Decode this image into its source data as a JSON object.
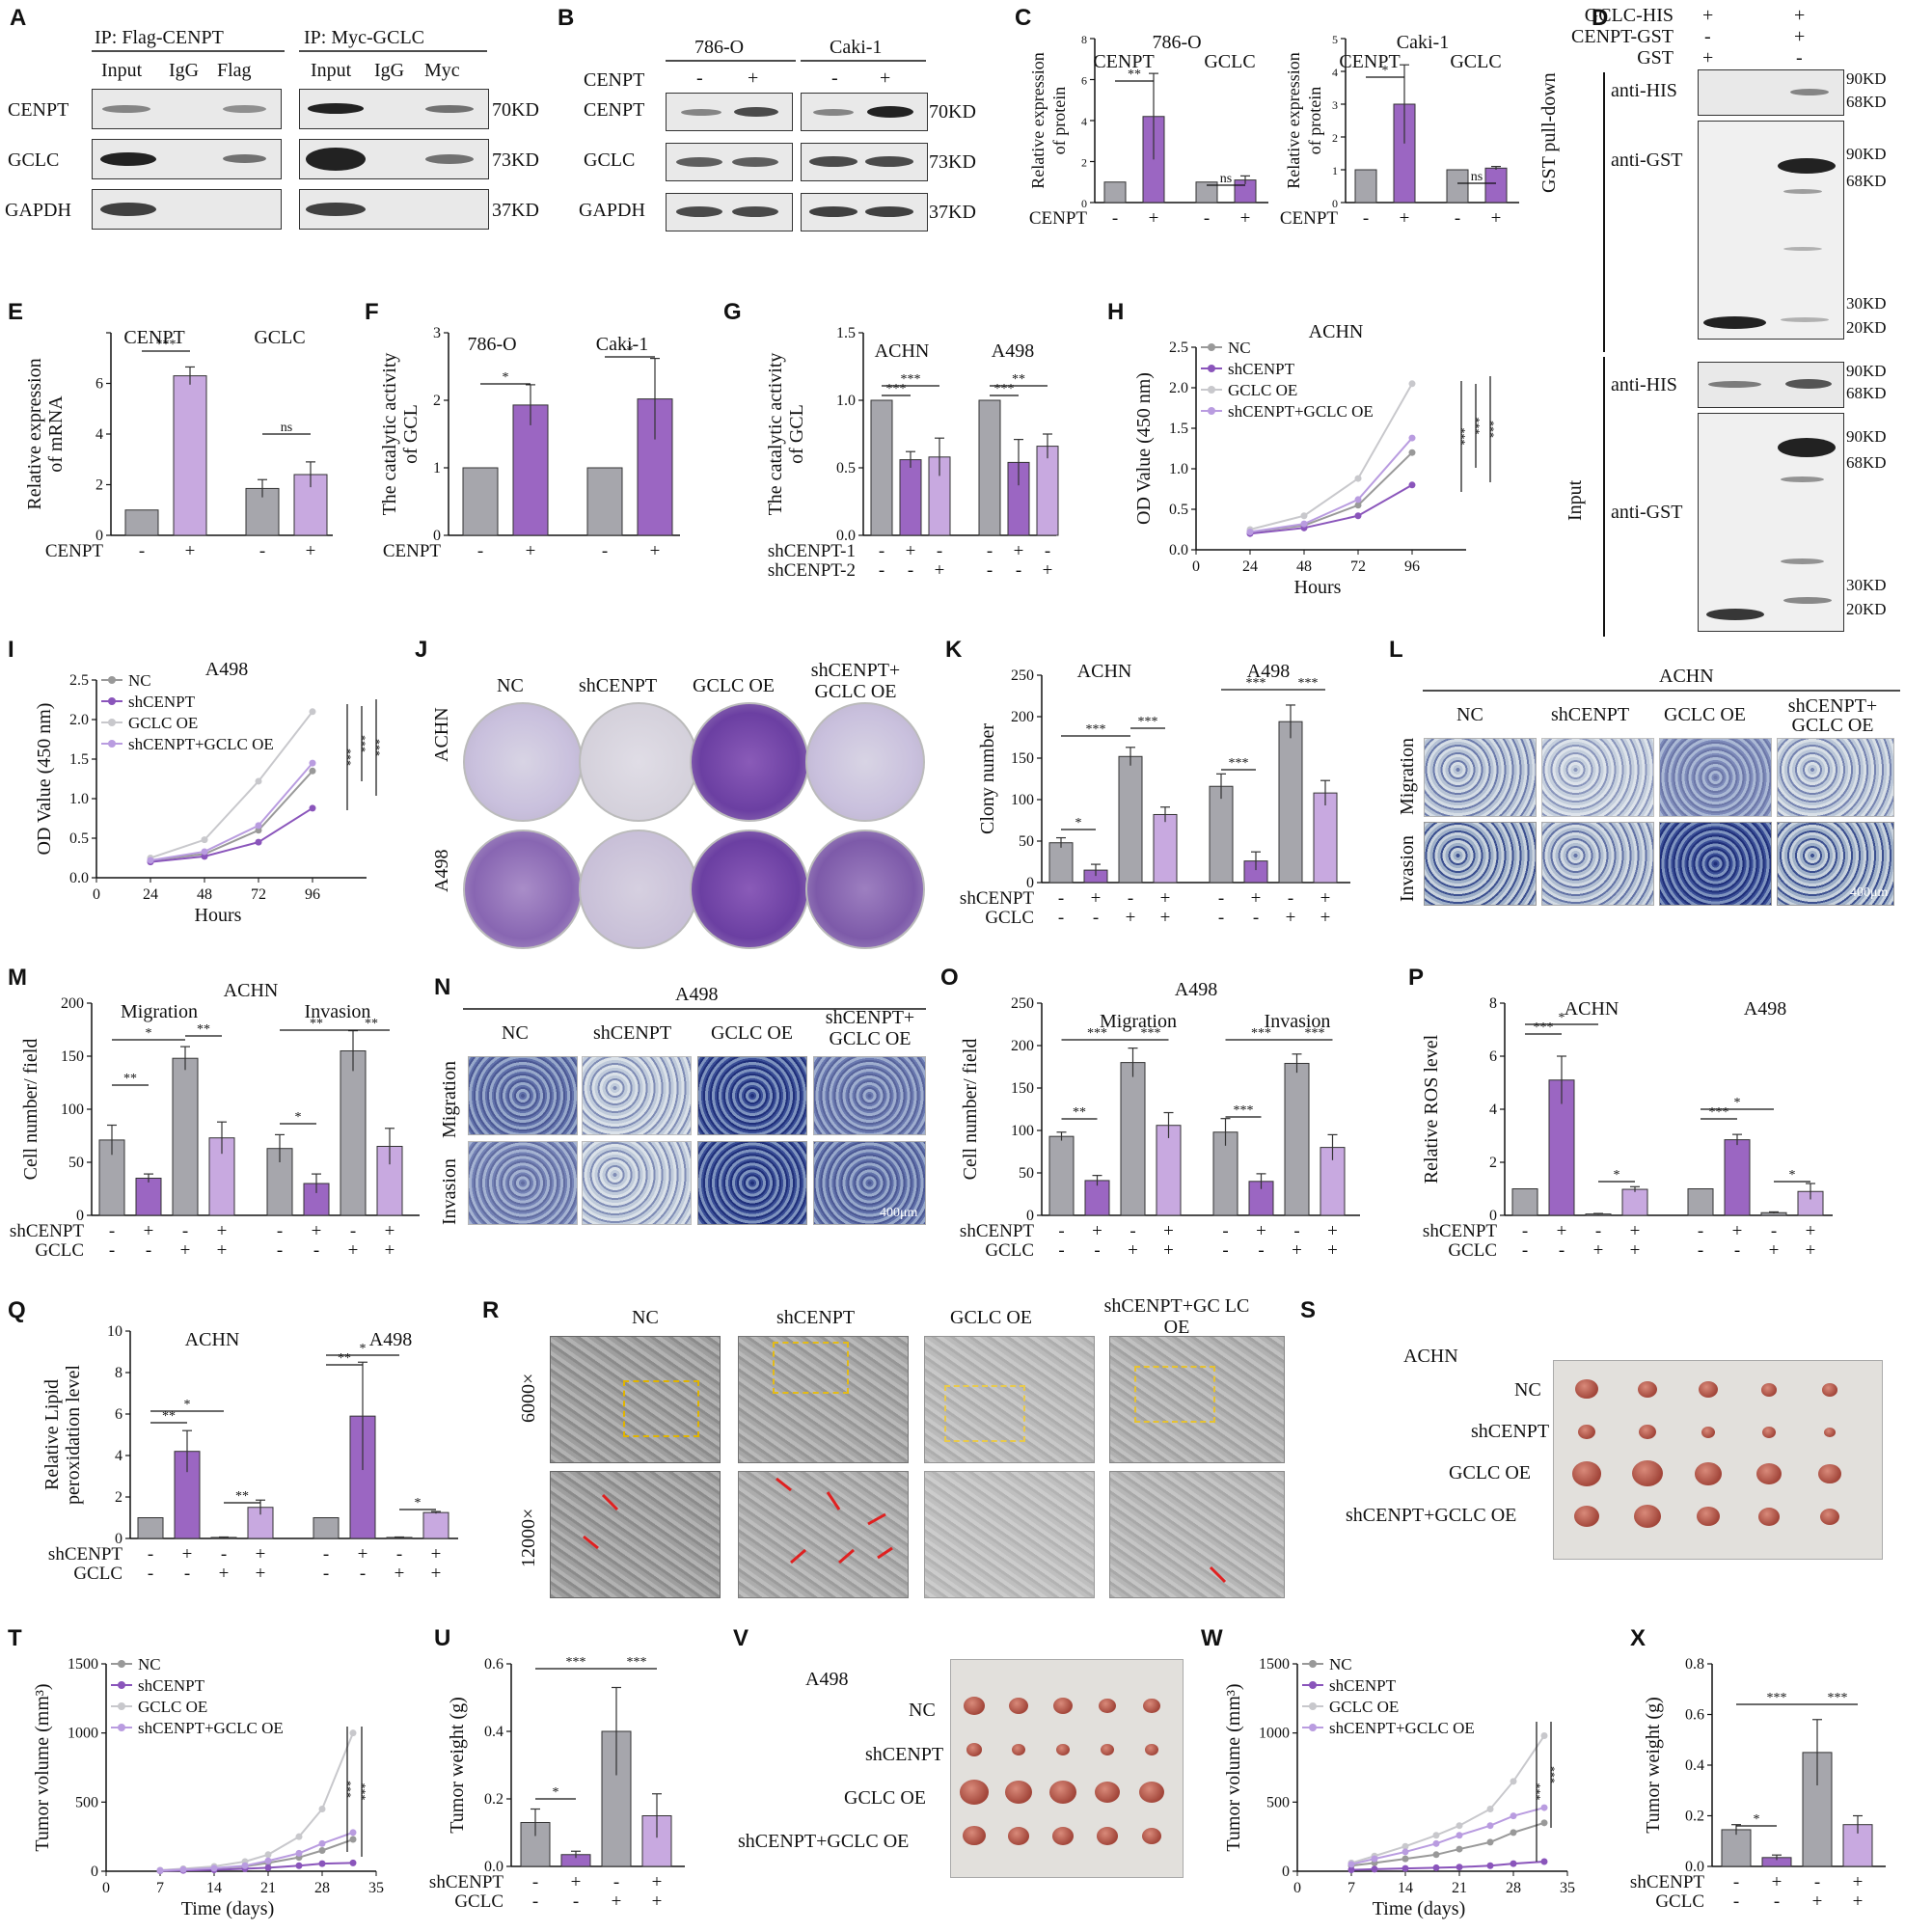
{
  "panels": {
    "A": {
      "label": "A",
      "ip1": "IP: Flag-CENPT",
      "ip2": "IP: Myc-GCLC",
      "cols1": [
        "Input",
        "IgG",
        "Flag"
      ],
      "cols2": [
        "Input",
        "IgG",
        "Myc"
      ],
      "rows": [
        "CENPT",
        "GCLC",
        "GAPDH"
      ],
      "kd": [
        "70KD",
        "73KD",
        "37KD"
      ]
    },
    "B": {
      "label": "B",
      "cell1": "786-O",
      "cell2": "Caki-1",
      "cenpt": "CENPT",
      "signs": [
        "-",
        "+",
        "-",
        "+"
      ],
      "rows": [
        "CENPT",
        "GCLC",
        "GAPDH"
      ],
      "kd": [
        "70KD",
        "73KD",
        "37KD"
      ]
    },
    "C": {
      "label": "C",
      "ylabel": "Relative expression of protein",
      "title1": "786-O",
      "title2": "Caki-1",
      "g1": "CENPT",
      "g2": "GCLC",
      "xrow": "CENPT",
      "signs": [
        "-",
        "+",
        "-",
        "+"
      ],
      "sig1": "**",
      "sig2": "*",
      "ns": "ns"
    },
    "D": {
      "label": "D",
      "rows": [
        {
          "name": "GCLC-HIS",
          "signs": [
            "+",
            "+"
          ]
        },
        {
          "name": "CENPT-GST",
          "signs": [
            "-",
            "+"
          ]
        },
        {
          "name": "GST",
          "signs": [
            "+",
            "-"
          ]
        }
      ],
      "side1": "GST pull-down",
      "side2": "Input",
      "antiHIS": "anti-HIS",
      "antiGST": "anti-GST",
      "kd": [
        "90KD",
        "68KD",
        "90KD",
        "68KD",
        "30KD",
        "20KD",
        "90KD",
        "68KD",
        "90KD",
        "68KD",
        "30KD",
        "20KD"
      ]
    },
    "E": {
      "label": "E",
      "ylabel": "Relative expression of mRNA",
      "g1": "CENPT",
      "g2": "GCLC",
      "xrow": "CENPT",
      "sig": "***",
      "ns": "ns",
      "yticks": [
        "0",
        "2",
        "4",
        "6"
      ]
    },
    "F": {
      "label": "F",
      "ylabel": "The catalytic activity of GCL",
      "g1": "786-O",
      "g2": "Caki-1",
      "xrow": "CENPT",
      "sig": "*",
      "yticks": [
        "0",
        "1",
        "2",
        "3"
      ]
    },
    "G": {
      "label": "G",
      "ylabel": "The catalytic activity of GCL",
      "g1": "ACHN",
      "g2": "A498",
      "rows": [
        "shCENPT-1",
        "shCENPT-2"
      ],
      "sig1": "***",
      "sig2": "**",
      "yticks": [
        "0.0",
        "0.5",
        "1.0",
        "1.5"
      ]
    },
    "H": {
      "label": "H",
      "title": "ACHN",
      "ylabel": "OD Value (450 nm)",
      "xlabel": "Hours",
      "legend": [
        "NC",
        "shCENPT",
        "GCLC OE",
        "shCENPT+GCLC OE"
      ],
      "xticks": [
        "0",
        "24",
        "48",
        "72",
        "96"
      ],
      "yticks": [
        "0.0",
        "0.5",
        "1.0",
        "1.5",
        "2.0",
        "2.5"
      ],
      "sig": "***"
    },
    "I": {
      "label": "I",
      "title": "A498",
      "ylabel": "OD Value (450 nm)",
      "xlabel": "Hours",
      "legend": [
        "NC",
        "shCENPT",
        "GCLC OE",
        "shCENPT+GCLC OE"
      ],
      "xticks": [
        "0",
        "24",
        "48",
        "72",
        "96"
      ],
      "yticks": [
        "0.0",
        "0.5",
        "1.0",
        "1.5",
        "2.0",
        "2.5"
      ],
      "sig": "***"
    },
    "J": {
      "label": "J",
      "cols": [
        "NC",
        "shCENPT",
        "GCLC OE",
        "shCENPT+ GCLC OE"
      ],
      "rows": [
        "ACHN",
        "A498"
      ]
    },
    "K": {
      "label": "K",
      "ylabel": "Clony number",
      "g1": "ACHN",
      "g2": "A498",
      "rows": [
        "shCENPT",
        "GCLC"
      ],
      "yticks": [
        "0",
        "50",
        "100",
        "150",
        "200",
        "250"
      ],
      "sig": "***"
    },
    "L": {
      "label": "L",
      "title": "ACHN",
      "cols": [
        "NC",
        "shCENPT",
        "GCLC OE",
        "shCENPT+ GCLC OE"
      ],
      "rows": [
        "Migration",
        "Invasion"
      ],
      "scale": "400μm"
    },
    "M": {
      "label": "M",
      "title": "ACHN",
      "ylabel": "Cell number/ field",
      "g1": "Migration",
      "g2": "Invasion",
      "rows": [
        "shCENPT",
        "GCLC"
      ],
      "yticks": [
        "0",
        "50",
        "100",
        "150",
        "200"
      ],
      "sig": "**"
    },
    "N": {
      "label": "N",
      "title": "A498",
      "cols": [
        "NC",
        "shCENPT",
        "GCLC OE",
        "shCENPT+ GCLC OE"
      ],
      "rows": [
        "Migration",
        "Invasion"
      ],
      "scale": "400μm"
    },
    "O": {
      "label": "O",
      "title": "A498",
      "ylabel": "Cell number/ field",
      "g1": "Migration",
      "g2": "Invasion",
      "rows": [
        "shCENPT",
        "GCLC"
      ],
      "yticks": [
        "0",
        "50",
        "100",
        "150",
        "200",
        "250"
      ],
      "sig": "***"
    },
    "P": {
      "label": "P",
      "ylabel": "Relative ROS level",
      "g1": "ACHN",
      "g2": "A498",
      "rows": [
        "shCENPT",
        "GCLC"
      ],
      "yticks": [
        "0",
        "2",
        "4",
        "6",
        "8"
      ],
      "sig": "***"
    },
    "Q": {
      "label": "Q",
      "ylabel": "Relative Lipid peroxidation level",
      "g1": "ACHN",
      "g2": "A498",
      "rows": [
        "shCENPT",
        "GCLC"
      ],
      "yticks": [
        "0",
        "2",
        "4",
        "6",
        "8",
        "10"
      ],
      "sig": "**"
    },
    "R": {
      "label": "R",
      "cols": [
        "NC",
        "shCENPT",
        "GCLC OE",
        "shCENPT+GC LC OE"
      ],
      "rows": [
        "6000×",
        "12000×"
      ]
    },
    "S": {
      "label": "S",
      "title": "ACHN",
      "rows": [
        "NC",
        "shCENPT",
        "GCLC OE",
        "shCENPT+GCLC OE"
      ]
    },
    "T": {
      "label": "T",
      "ylabel": "Tumor volume (mm³)",
      "xlabel": "Time (days)",
      "legend": [
        "NC",
        "shCENPT",
        "GCLC OE",
        "shCENPT+GCLC OE"
      ],
      "xticks": [
        "0",
        "7",
        "14",
        "21",
        "28",
        "35"
      ],
      "yticks": [
        "0",
        "500",
        "1000",
        "1500"
      ],
      "sig": "***"
    },
    "U": {
      "label": "U",
      "ylabel": "Tumor weight (g)",
      "rows": [
        "shCENPT",
        "GCLC"
      ],
      "yticks": [
        "0.0",
        "0.2",
        "0.4",
        "0.6"
      ],
      "sig": "***"
    },
    "V": {
      "label": "V",
      "title": "A498",
      "rows": [
        "NC",
        "shCENPT",
        "GCLC OE",
        "shCENPT+GCLC OE"
      ]
    },
    "W": {
      "label": "W",
      "ylabel": "Tumor volume (mm³)",
      "xlabel": "Time (days)",
      "legend": [
        "NC",
        "shCENPT",
        "GCLC OE",
        "shCENPT+GCLC OE"
      ],
      "xticks": [
        "0",
        "7",
        "14",
        "21",
        "28",
        "35"
      ],
      "yticks": [
        "0",
        "500",
        "1000",
        "1500"
      ],
      "sig": "***"
    },
    "X": {
      "label": "X",
      "ylabel": "Tumor weight (g)",
      "rows": [
        "shCENPT",
        "GCLC"
      ],
      "yticks": [
        "0.0",
        "0.2",
        "0.4",
        "0.6",
        "0.8"
      ],
      "sig": "***"
    }
  },
  "chart_data": [
    {
      "id": "C-786-O",
      "type": "bar",
      "categories": [
        "CENPT -",
        "CENPT +",
        "GCLC -",
        "GCLC +"
      ],
      "values": [
        1,
        4.2,
        1,
        1.1
      ],
      "errors": [
        0,
        2.1,
        0,
        0.2
      ],
      "ylim": [
        0,
        8
      ],
      "yticks": [
        "0",
        "2",
        "4",
        "6",
        "8"
      ]
    },
    {
      "id": "C-Caki-1",
      "type": "bar",
      "categories": [
        "CENPT -",
        "CENPT +",
        "GCLC -",
        "GCLC +"
      ],
      "values": [
        1,
        3.0,
        1,
        1.05
      ],
      "errors": [
        0,
        1.2,
        0,
        0.05
      ],
      "ylim": [
        0,
        5
      ],
      "yticks": [
        "0",
        "1",
        "2",
        "3",
        "4",
        "5"
      ]
    },
    {
      "id": "E",
      "type": "bar",
      "categories": [
        "CENPT -",
        "CENPT +",
        "GCLC -",
        "GCLC +"
      ],
      "values": [
        1,
        6.3,
        1.85,
        2.4
      ],
      "errors": [
        0,
        0.35,
        0.35,
        0.5
      ],
      "ylim": [
        0,
        8
      ]
    },
    {
      "id": "F",
      "type": "bar",
      "categories": [
        "786-O -",
        "786-O +",
        "Caki-1 -",
        "Caki-1 +"
      ],
      "values": [
        1,
        1.93,
        1,
        2.02
      ],
      "errors": [
        0,
        0.3,
        0,
        0.6
      ],
      "ylim": [
        0,
        3
      ]
    },
    {
      "id": "G",
      "type": "bar",
      "categories": [
        "ACHN NC",
        "ACHN sh1",
        "ACHN sh2",
        "A498 NC",
        "A498 sh1",
        "A498 sh2"
      ],
      "values": [
        1,
        0.56,
        0.58,
        1,
        0.54,
        0.66
      ],
      "errors": [
        0,
        0.06,
        0.14,
        0,
        0.17,
        0.09
      ],
      "ylim": [
        0,
        1.5
      ]
    },
    {
      "id": "H",
      "type": "line",
      "x": [
        24,
        48,
        72,
        96
      ],
      "series": [
        {
          "name": "NC",
          "values": [
            0.22,
            0.3,
            0.55,
            1.2
          ]
        },
        {
          "name": "shCENPT",
          "values": [
            0.2,
            0.27,
            0.42,
            0.8
          ]
        },
        {
          "name": "GCLC OE",
          "values": [
            0.25,
            0.42,
            0.88,
            2.05
          ]
        },
        {
          "name": "shCENPT+GCLC OE",
          "values": [
            0.22,
            0.32,
            0.62,
            1.38
          ]
        }
      ],
      "xlim": [
        0,
        120
      ],
      "ylim": [
        0,
        2.5
      ]
    },
    {
      "id": "I",
      "type": "line",
      "x": [
        24,
        48,
        72,
        96
      ],
      "series": [
        {
          "name": "NC",
          "values": [
            0.22,
            0.3,
            0.6,
            1.35
          ]
        },
        {
          "name": "shCENPT",
          "values": [
            0.2,
            0.27,
            0.45,
            0.88
          ]
        },
        {
          "name": "GCLC OE",
          "values": [
            0.25,
            0.48,
            1.22,
            2.1
          ]
        },
        {
          "name": "shCENPT+GCLC OE",
          "values": [
            0.22,
            0.33,
            0.66,
            1.45
          ]
        }
      ],
      "xlim": [
        0,
        120
      ],
      "ylim": [
        0,
        2.5
      ]
    },
    {
      "id": "K",
      "type": "bar",
      "categories": [
        "ACHN NC",
        "ACHN sh",
        "ACHN OE",
        "ACHN sh+OE",
        "A498 NC",
        "A498 sh",
        "A498 OE",
        "A498 sh+OE"
      ],
      "values": [
        48,
        15,
        152,
        82,
        116,
        26,
        194,
        108
      ],
      "errors": [
        6,
        7,
        11,
        9,
        15,
        11,
        20,
        15
      ],
      "ylim": [
        0,
        250
      ]
    },
    {
      "id": "M",
      "type": "bar",
      "categories": [
        "Mig NC",
        "Mig sh",
        "Mig OE",
        "Mig sh+OE",
        "Inv NC",
        "Inv sh",
        "Inv OE",
        "Inv sh+OE"
      ],
      "values": [
        71,
        35,
        148,
        73,
        63,
        30,
        155,
        65
      ],
      "errors": [
        14,
        4,
        11,
        15,
        13,
        9,
        19,
        17
      ],
      "ylim": [
        0,
        200
      ]
    },
    {
      "id": "O",
      "type": "bar",
      "categories": [
        "Mig NC",
        "Mig sh",
        "Mig OE",
        "Mig sh+OE",
        "Inv NC",
        "Inv sh",
        "Inv OE",
        "Inv sh+OE"
      ],
      "values": [
        93,
        41,
        180,
        106,
        98,
        40,
        179,
        80
      ],
      "errors": [
        5,
        6,
        17,
        15,
        16,
        9,
        11,
        15
      ],
      "ylim": [
        0,
        250
      ]
    },
    {
      "id": "P",
      "type": "bar",
      "categories": [
        "ACHN NC",
        "ACHN sh",
        "ACHN OE",
        "ACHN sh+OE",
        "A498 NC",
        "A498 sh",
        "A498 OE",
        "A498 sh+OE"
      ],
      "values": [
        1,
        5.1,
        0.05,
        0.98,
        1,
        2.85,
        0.1,
        0.9
      ],
      "errors": [
        0,
        0.9,
        0.02,
        0.1,
        0,
        0.2,
        0.03,
        0.3
      ],
      "ylim": [
        0,
        8
      ]
    },
    {
      "id": "Q",
      "type": "bar",
      "categories": [
        "ACHN NC",
        "ACHN sh",
        "ACHN OE",
        "ACHN sh+OE",
        "A498 NC",
        "A498 sh",
        "A498 OE",
        "A498 sh+OE"
      ],
      "values": [
        1,
        4.2,
        0.05,
        1.5,
        1,
        5.9,
        0.05,
        1.25
      ],
      "errors": [
        0,
        1.0,
        0.02,
        0.35,
        0,
        2.6,
        0.02,
        0.05
      ],
      "ylim": [
        0,
        10
      ]
    },
    {
      "id": "T",
      "type": "line",
      "x": [
        7,
        10,
        14,
        18,
        21,
        25,
        28,
        32
      ],
      "series": [
        {
          "name": "NC",
          "values": [
            5,
            10,
            20,
            35,
            60,
            100,
            150,
            230
          ]
        },
        {
          "name": "shCENPT",
          "values": [
            3,
            6,
            10,
            18,
            25,
            40,
            55,
            60
          ]
        },
        {
          "name": "GCLC OE",
          "values": [
            8,
            18,
            35,
            70,
            120,
            250,
            450,
            1000
          ]
        },
        {
          "name": "shCENPT+GCLC OE",
          "values": [
            5,
            12,
            22,
            40,
            75,
            130,
            200,
            280
          ]
        }
      ],
      "xlim": [
        0,
        35
      ],
      "ylim": [
        0,
        1500
      ]
    },
    {
      "id": "U",
      "type": "bar",
      "categories": [
        "NC",
        "shCENPT",
        "GCLC OE",
        "shCENPT+GCLC OE"
      ],
      "values": [
        0.13,
        0.035,
        0.4,
        0.15
      ],
      "errors": [
        0.04,
        0.01,
        0.13,
        0.065
      ],
      "ylim": [
        0,
        0.6
      ]
    },
    {
      "id": "W",
      "type": "line",
      "x": [
        7,
        10,
        14,
        18,
        21,
        25,
        28,
        32
      ],
      "series": [
        {
          "name": "NC",
          "values": [
            40,
            60,
            90,
            120,
            160,
            210,
            280,
            350
          ]
        },
        {
          "name": "shCENPT",
          "values": [
            10,
            15,
            20,
            25,
            30,
            40,
            55,
            70
          ]
        },
        {
          "name": "GCLC OE",
          "values": [
            60,
            110,
            180,
            260,
            330,
            450,
            650,
            980
          ]
        },
        {
          "name": "shCENPT+GCLC OE",
          "values": [
            50,
            90,
            140,
            200,
            260,
            330,
            400,
            460
          ]
        }
      ],
      "xlim": [
        0,
        35
      ],
      "ylim": [
        0,
        1500
      ]
    },
    {
      "id": "X",
      "type": "bar",
      "categories": [
        "NC",
        "shCENPT",
        "GCLC OE",
        "shCENPT+GCLC OE"
      ],
      "values": [
        0.145,
        0.035,
        0.45,
        0.165
      ],
      "errors": [
        0.02,
        0.01,
        0.13,
        0.035
      ],
      "ylim": [
        0,
        0.8
      ]
    }
  ]
}
